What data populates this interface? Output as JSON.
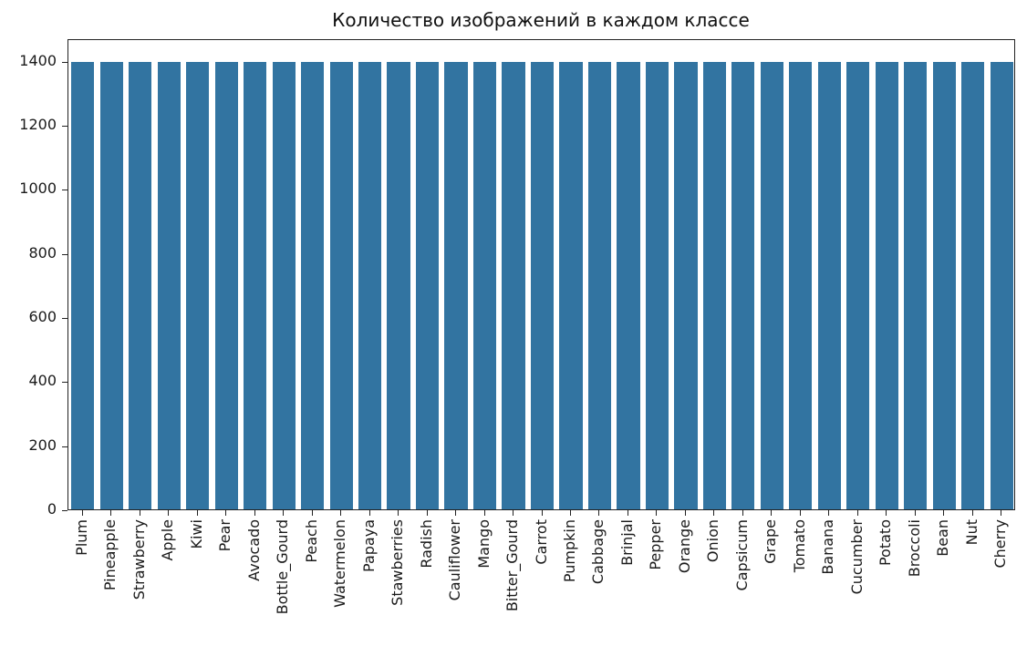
{
  "chart_data": {
    "type": "bar",
    "title": "Количество изображений в каждом классе",
    "xlabel": "",
    "ylabel": "",
    "ylim": [
      0,
      1470
    ],
    "yticks": [
      0,
      200,
      400,
      600,
      800,
      1000,
      1200,
      1400
    ],
    "grid": false,
    "legend": null,
    "bar_color": "#3274a1",
    "categories": [
      "Plum",
      "Pineapple",
      "Strawberry",
      "Apple",
      "Kiwi",
      "Pear",
      "Avocado",
      "Bottle_Gourd",
      "Peach",
      "Watermelon",
      "Papaya",
      "Stawberries",
      "Radish",
      "Cauliflower",
      "Mango",
      "Bitter_Gourd",
      "Carrot",
      "Pumpkin",
      "Cabbage",
      "Brinjal",
      "Pepper",
      "Orange",
      "Onion",
      "Capsicum",
      "Grape",
      "Tomato",
      "Banana",
      "Cucumber",
      "Potato",
      "Broccoli",
      "Bean",
      "Nut",
      "Cherry"
    ],
    "values": [
      1400,
      1400,
      1400,
      1400,
      1400,
      1400,
      1400,
      1400,
      1400,
      1400,
      1400,
      1400,
      1400,
      1400,
      1400,
      1400,
      1400,
      1400,
      1400,
      1400,
      1400,
      1400,
      1400,
      1400,
      1400,
      1400,
      1400,
      1400,
      1400,
      1400,
      1400,
      1400,
      1400
    ]
  }
}
